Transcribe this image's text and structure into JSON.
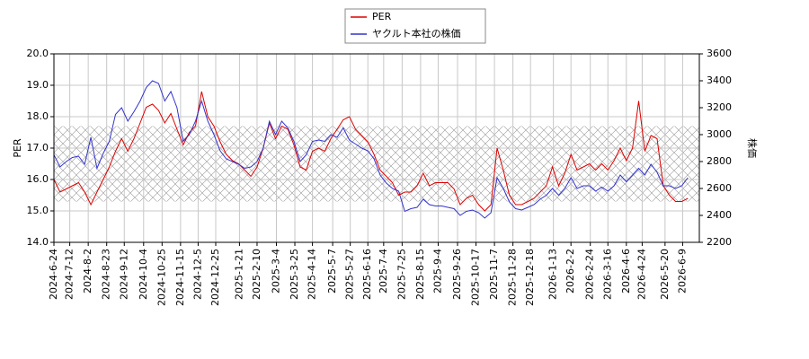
{
  "chart_data": {
    "type": "line",
    "ylabel": "PER",
    "y2label": "株価",
    "x": [
      "2024-6-24",
      "2024-7-1",
      "2024-7-8",
      "2024-7-15",
      "2024-7-22",
      "2024-7-29",
      "2024-8-5",
      "2024-8-12",
      "2024-8-19",
      "2024-8-26",
      "2024-9-2",
      "2024-9-9",
      "2024-9-16",
      "2024-9-23",
      "2024-9-30",
      "2024-10-7",
      "2024-10-14",
      "2024-10-21",
      "2024-10-28",
      "2024-11-4",
      "2024-11-11",
      "2024-11-18",
      "2024-11-25",
      "2024-12-2",
      "2024-12-9",
      "2024-12-16",
      "2024-12-23",
      "2024-12-30",
      "2025-1-6",
      "2025-1-13",
      "2025-1-20",
      "2025-1-27",
      "2025-2-3",
      "2025-2-10",
      "2025-2-17",
      "2025-2-24",
      "2025-3-3",
      "2025-3-10",
      "2025-3-17",
      "2025-3-24",
      "2025-3-31",
      "2025-4-7",
      "2025-4-14",
      "2025-4-21",
      "2025-4-28",
      "2025-5-5",
      "2025-5-12",
      "2025-5-19",
      "2025-5-26",
      "2025-6-2",
      "2025-6-9",
      "2025-6-16",
      "2025-6-23",
      "2025-6-30",
      "2025-7-7",
      "2025-7-14",
      "2025-7-21",
      "2025-7-28",
      "2025-8-4",
      "2025-8-11",
      "2025-8-18",
      "2025-8-25",
      "2025-9-1",
      "2025-9-8",
      "2025-9-15",
      "2025-9-22",
      "2025-9-29",
      "2025-10-6",
      "2025-10-13",
      "2025-10-20",
      "2025-10-27",
      "2025-11-3",
      "2025-11-10",
      "2025-11-17",
      "2025-11-24",
      "2025-12-1",
      "2025-12-8",
      "2025-12-15",
      "2025-12-22",
      "2025-12-29",
      "2026-1-5",
      "2026-1-12",
      "2026-1-19",
      "2026-1-26",
      "2026-2-2",
      "2026-2-9",
      "2026-2-16",
      "2026-2-23",
      "2026-3-2",
      "2026-3-9",
      "2026-3-16",
      "2026-3-23",
      "2026-3-30",
      "2026-4-6",
      "2026-4-13",
      "2026-4-20",
      "2026-4-27",
      "2026-5-4",
      "2026-5-11",
      "2026-5-18",
      "2026-5-25",
      "2026-6-1",
      "2026-6-8",
      "2026-6-15"
    ],
    "xlim": [
      "2024-6-24",
      "2026-6-28"
    ],
    "xticks": [
      "2024-6-24",
      "2024-7-12",
      "2024-8-2",
      "2024-8-23",
      "2024-9-12",
      "2024-10-4",
      "2024-10-25",
      "2024-11-15",
      "2024-12-5",
      "2024-12-25",
      "2025-1-21",
      "2025-2-10",
      "2025-3-4",
      "2025-3-25",
      "2025-4-14",
      "2025-5-7",
      "2025-5-27",
      "2025-6-16",
      "2025-7-4",
      "2025-7-25",
      "2025-8-15",
      "2025-9-4",
      "2025-9-26",
      "2025-10-17",
      "2025-11-7",
      "2025-11-28",
      "2025-12-18",
      "2026-1-13",
      "2026-2-2",
      "2026-2-24",
      "2026-3-16",
      "2026-4-6",
      "2026-4-24",
      "2026-5-20",
      "2026-6-9"
    ],
    "ylim": [
      14,
      20
    ],
    "yticks": [
      {
        "value": 14,
        "label": "14.0"
      },
      {
        "value": 15,
        "label": "15.0"
      },
      {
        "value": 16,
        "label": "16.0"
      },
      {
        "value": 17,
        "label": "17.0"
      },
      {
        "value": 18,
        "label": "18.0"
      },
      {
        "value": 19,
        "label": "19.0"
      },
      {
        "value": 20,
        "label": "20.0"
      }
    ],
    "y2lim": [
      2200,
      3600
    ],
    "y2ticks": [
      2200,
      2400,
      2600,
      2800,
      3000,
      3200,
      3400,
      3600
    ],
    "band": [
      15.3,
      17.7
    ],
    "grid": true,
    "legend": "top",
    "series": [
      {
        "name": "PER",
        "color": "#dd0000",
        "values": [
          16.0,
          15.6,
          15.7,
          15.8,
          15.9,
          15.6,
          15.2,
          15.6,
          16.0,
          16.4,
          16.9,
          17.3,
          16.9,
          17.3,
          17.8,
          18.3,
          18.4,
          18.2,
          17.8,
          18.1,
          17.6,
          17.1,
          17.5,
          17.7,
          18.8,
          18.0,
          17.7,
          17.2,
          16.8,
          16.6,
          16.5,
          16.3,
          16.1,
          16.4,
          17.0,
          17.8,
          17.3,
          17.7,
          17.6,
          17.1,
          16.4,
          16.3,
          16.9,
          17.0,
          16.9,
          17.3,
          17.6,
          17.9,
          18.0,
          17.6,
          17.4,
          17.2,
          16.8,
          16.3,
          16.1,
          15.9,
          15.5,
          15.6,
          15.6,
          15.8,
          16.2,
          15.8,
          15.9,
          15.9,
          15.9,
          15.7,
          15.2,
          15.4,
          15.5,
          15.2,
          15.0,
          15.2,
          17.0,
          16.3,
          15.5,
          15.2,
          15.2,
          15.3,
          15.4,
          15.6,
          15.8,
          16.4,
          15.8,
          16.2,
          16.8,
          16.3,
          16.4,
          16.5,
          16.3,
          16.5,
          16.3,
          16.6,
          17.0,
          16.6,
          17.0,
          18.5,
          16.9,
          17.4,
          17.3,
          15.8,
          15.5,
          15.3,
          15.3,
          15.4
        ]
      },
      {
        "name": "ヤクルト本社の株価",
        "color": "#3333cc",
        "axis": "y2",
        "values": [
          2850,
          2760,
          2800,
          2830,
          2840,
          2780,
          2980,
          2750,
          2860,
          2950,
          3150,
          3200,
          3100,
          3170,
          3250,
          3350,
          3400,
          3380,
          3250,
          3320,
          3200,
          2950,
          3000,
          3100,
          3250,
          3100,
          3000,
          2880,
          2820,
          2800,
          2780,
          2750,
          2760,
          2800,
          2900,
          3100,
          3000,
          3100,
          3050,
          2950,
          2800,
          2850,
          2950,
          2960,
          2950,
          3000,
          2980,
          3050,
          2960,
          2930,
          2900,
          2880,
          2820,
          2700,
          2640,
          2600,
          2580,
          2430,
          2450,
          2460,
          2520,
          2480,
          2470,
          2470,
          2460,
          2450,
          2400,
          2430,
          2440,
          2420,
          2380,
          2420,
          2680,
          2600,
          2500,
          2450,
          2440,
          2460,
          2480,
          2520,
          2550,
          2600,
          2550,
          2600,
          2680,
          2600,
          2620,
          2620,
          2580,
          2610,
          2580,
          2620,
          2700,
          2650,
          2700,
          2750,
          2700,
          2780,
          2720,
          2620,
          2620,
          2600,
          2620,
          2680
        ]
      }
    ]
  }
}
